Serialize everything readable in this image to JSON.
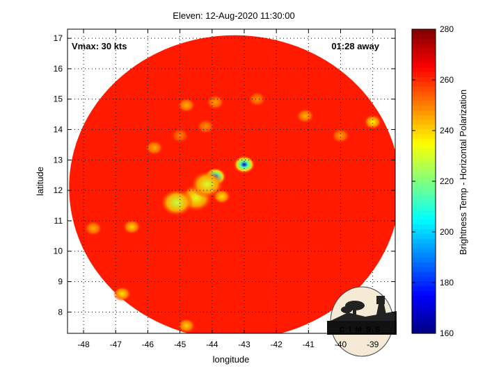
{
  "chart_data": {
    "type": "heatmap",
    "title": "Eleven: 12-Aug-2020 11:30:00",
    "xlabel": "longitude",
    "ylabel": "latitude",
    "xlim": [
      -48.5,
      -38.3
    ],
    "ylim": [
      7.3,
      17.3
    ],
    "xticks": [
      "-48",
      "-47",
      "-46",
      "-45",
      "-44",
      "-43",
      "-42",
      "-41",
      "-40",
      "-39"
    ],
    "yticks": [
      "8",
      "9",
      "10",
      "11",
      "12",
      "13",
      "14",
      "15",
      "16",
      "17"
    ],
    "grid": true,
    "annotations": {
      "left": "Vmax: 30 kts",
      "right": "01:28 away"
    },
    "swath": {
      "center_lon": -43.3,
      "center_lat": 12.1,
      "radius_deg_lon": 5.15,
      "radius_deg_lat": 5.0
    },
    "background_value": 262,
    "cold_features": [
      {
        "lon": -43.0,
        "lat": 12.85,
        "value": 172
      },
      {
        "lon": -43.9,
        "lat": 12.45,
        "value": 185
      },
      {
        "lon": -44.5,
        "lat": 11.75,
        "value": 232
      },
      {
        "lon": -45.1,
        "lat": 11.6,
        "value": 228
      },
      {
        "lon": -44.15,
        "lat": 12.2,
        "value": 230
      },
      {
        "lon": -43.7,
        "lat": 11.8,
        "value": 238
      },
      {
        "lon": -44.8,
        "lat": 14.8,
        "value": 244
      },
      {
        "lon": -43.9,
        "lat": 14.9,
        "value": 246
      },
      {
        "lon": -44.2,
        "lat": 14.1,
        "value": 248
      },
      {
        "lon": -45.8,
        "lat": 13.4,
        "value": 244
      },
      {
        "lon": -45.0,
        "lat": 13.8,
        "value": 250
      },
      {
        "lon": -39.0,
        "lat": 14.25,
        "value": 236
      },
      {
        "lon": -41.1,
        "lat": 14.45,
        "value": 244
      },
      {
        "lon": -40.0,
        "lat": 13.8,
        "value": 246
      },
      {
        "lon": -47.7,
        "lat": 10.75,
        "value": 244
      },
      {
        "lon": -46.5,
        "lat": 10.8,
        "value": 240
      },
      {
        "lon": -46.8,
        "lat": 8.6,
        "value": 238
      },
      {
        "lon": -44.8,
        "lat": 7.55,
        "value": 240
      },
      {
        "lon": -42.6,
        "lat": 15.0,
        "value": 248
      }
    ],
    "colorbar": {
      "label": "Brightness Temp - Horizontal Polarization",
      "range": [
        160,
        280
      ],
      "ticks": [
        "160",
        "180",
        "200",
        "220",
        "240",
        "260",
        "280"
      ],
      "colormap": "jet"
    },
    "logo": "CIMSS"
  }
}
